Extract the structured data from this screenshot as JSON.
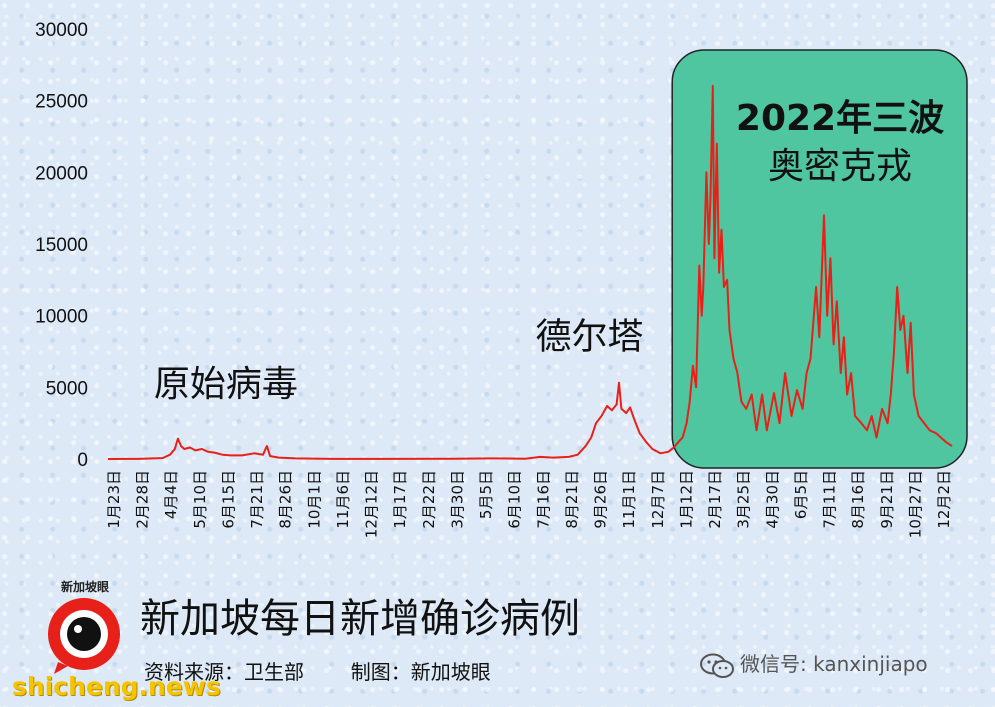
{
  "chart_data": {
    "type": "line",
    "title": "新加坡每日新增确诊病例",
    "source": "资料来源：卫生部",
    "credit": "制图：新加坡眼",
    "ylim": [
      0,
      30000
    ],
    "y_ticks": [
      "0",
      "5000",
      "10000",
      "15000",
      "20000",
      "25000",
      "30000"
    ],
    "x_tick_labels": [
      "1月23日",
      "2月28日",
      "4月4日",
      "5月10日",
      "6月15日",
      "7月21日",
      "8月26日",
      "10月1日",
      "11月6日",
      "12月12日",
      "1月17日",
      "2月22日",
      "3月30日",
      "5月5日",
      "6月10日",
      "7月16日",
      "8月21日",
      "9月26日",
      "11月1日",
      "12月7日",
      "1月12日",
      "2月17日",
      "3月25日",
      "4月30日",
      "6月5日",
      "7月11日",
      "8月16日",
      "9月21日",
      "10月27日",
      "12月2日"
    ],
    "x_range": [
      "2020-01-23",
      "2022-12-20"
    ],
    "series": [
      {
        "color": "#e8201a",
        "points": [
          [
            "2020-01-23",
            0
          ],
          [
            "2020-03-01",
            5
          ],
          [
            "2020-03-25",
            50
          ],
          [
            "2020-04-01",
            70
          ],
          [
            "2020-04-10",
            300
          ],
          [
            "2020-04-16",
            700
          ],
          [
            "2020-04-20",
            1426
          ],
          [
            "2020-04-24",
            900
          ],
          [
            "2020-04-28",
            700
          ],
          [
            "2020-05-05",
            800
          ],
          [
            "2020-05-12",
            600
          ],
          [
            "2020-05-20",
            700
          ],
          [
            "2020-05-28",
            500
          ],
          [
            "2020-06-05",
            450
          ],
          [
            "2020-06-15",
            300
          ],
          [
            "2020-06-25",
            250
          ],
          [
            "2020-07-10",
            250
          ],
          [
            "2020-07-25",
            400
          ],
          [
            "2020-08-05",
            300
          ],
          [
            "2020-08-10",
            908
          ],
          [
            "2020-08-14",
            200
          ],
          [
            "2020-08-25",
            100
          ],
          [
            "2020-09-15",
            40
          ],
          [
            "2020-11-01",
            10
          ],
          [
            "2021-04-01",
            20
          ],
          [
            "2021-05-20",
            40
          ],
          [
            "2021-07-01",
            20
          ],
          [
            "2021-07-20",
            150
          ],
          [
            "2021-08-05",
            100
          ],
          [
            "2021-08-25",
            150
          ],
          [
            "2021-09-05",
            300
          ],
          [
            "2021-09-15",
            900
          ],
          [
            "2021-09-22",
            1500
          ],
          [
            "2021-09-28",
            2500
          ],
          [
            "2021-10-05",
            3000
          ],
          [
            "2021-10-12",
            3700
          ],
          [
            "2021-10-18",
            3400
          ],
          [
            "2021-10-24",
            3800
          ],
          [
            "2021-10-27",
            5324
          ],
          [
            "2021-10-30",
            3500
          ],
          [
            "2021-11-05",
            3200
          ],
          [
            "2021-11-10",
            3600
          ],
          [
            "2021-11-15",
            2800
          ],
          [
            "2021-11-22",
            1800
          ],
          [
            "2021-11-30",
            1200
          ],
          [
            "2021-12-08",
            700
          ],
          [
            "2021-12-18",
            400
          ],
          [
            "2021-12-28",
            500
          ],
          [
            "2022-01-04",
            800
          ],
          [
            "2022-01-10",
            1200
          ],
          [
            "2022-01-15",
            1500
          ],
          [
            "2022-01-20",
            2500
          ],
          [
            "2022-01-24",
            4000
          ],
          [
            "2022-01-28",
            6500
          ],
          [
            "2022-02-01",
            5000
          ],
          [
            "2022-02-05",
            13500
          ],
          [
            "2022-02-08",
            10000
          ],
          [
            "2022-02-10",
            12000
          ],
          [
            "2022-02-14",
            20000
          ],
          [
            "2022-02-17",
            15000
          ],
          [
            "2022-02-19",
            18000
          ],
          [
            "2022-02-22",
            26032
          ],
          [
            "2022-02-24",
            14000
          ],
          [
            "2022-02-27",
            22000
          ],
          [
            "2022-03-02",
            13000
          ],
          [
            "2022-03-05",
            16000
          ],
          [
            "2022-03-08",
            12000
          ],
          [
            "2022-03-12",
            12500
          ],
          [
            "2022-03-15",
            9000
          ],
          [
            "2022-03-20",
            7000
          ],
          [
            "2022-03-25",
            6000
          ],
          [
            "2022-03-30",
            4000
          ],
          [
            "2022-04-05",
            3500
          ],
          [
            "2022-04-12",
            4500
          ],
          [
            "2022-04-18",
            2000
          ],
          [
            "2022-04-25",
            4500
          ],
          [
            "2022-05-01",
            2000
          ],
          [
            "2022-05-10",
            4600
          ],
          [
            "2022-05-17",
            2500
          ],
          [
            "2022-05-24",
            6000
          ],
          [
            "2022-06-01",
            3000
          ],
          [
            "2022-06-08",
            4800
          ],
          [
            "2022-06-15",
            3500
          ],
          [
            "2022-06-20",
            6000
          ],
          [
            "2022-06-25",
            7000
          ],
          [
            "2022-07-02",
            12000
          ],
          [
            "2022-07-06",
            8500
          ],
          [
            "2022-07-12",
            17000
          ],
          [
            "2022-07-16",
            10000
          ],
          [
            "2022-07-20",
            14000
          ],
          [
            "2022-07-24",
            8000
          ],
          [
            "2022-07-28",
            11000
          ],
          [
            "2022-08-02",
            6000
          ],
          [
            "2022-08-06",
            8500
          ],
          [
            "2022-08-10",
            4500
          ],
          [
            "2022-08-15",
            6000
          ],
          [
            "2022-08-20",
            3000
          ],
          [
            "2022-08-28",
            2500
          ],
          [
            "2022-09-04",
            2000
          ],
          [
            "2022-09-10",
            3000
          ],
          [
            "2022-09-16",
            1500
          ],
          [
            "2022-09-23",
            3500
          ],
          [
            "2022-09-30",
            2500
          ],
          [
            "2022-10-04",
            4500
          ],
          [
            "2022-10-08",
            7500
          ],
          [
            "2022-10-12",
            12000
          ],
          [
            "2022-10-16",
            9000
          ],
          [
            "2022-10-20",
            10000
          ],
          [
            "2022-10-25",
            6000
          ],
          [
            "2022-10-29",
            9500
          ],
          [
            "2022-11-02",
            4500
          ],
          [
            "2022-11-08",
            3000
          ],
          [
            "2022-11-15",
            2500
          ],
          [
            "2022-11-22",
            2000
          ],
          [
            "2022-11-30",
            1800
          ],
          [
            "2022-12-06",
            1500
          ],
          [
            "2022-12-12",
            1200
          ],
          [
            "2022-12-20",
            900
          ]
        ]
      }
    ],
    "annotations": [
      {
        "text": "原始病毒",
        "x": "2020-04-20",
        "y": 4400
      },
      {
        "text": "德尔塔",
        "x": "2021-10-20",
        "y": 7700
      },
      {
        "text": "2022年三波",
        "text2": "奥密克戎",
        "shaded_from": "2022-01-12"
      }
    ],
    "grid": false,
    "legend": "none"
  },
  "branding": {
    "logo_text": "新加坡眼",
    "wechat_label": "微信号: kanxinjiapo",
    "watermark": "shicheng.news"
  },
  "colors": {
    "line": "#e8201a",
    "omicron_box_fill": "#4fc6a0",
    "omicron_box_stroke": "#222222",
    "logo_red": "#e8201a"
  }
}
